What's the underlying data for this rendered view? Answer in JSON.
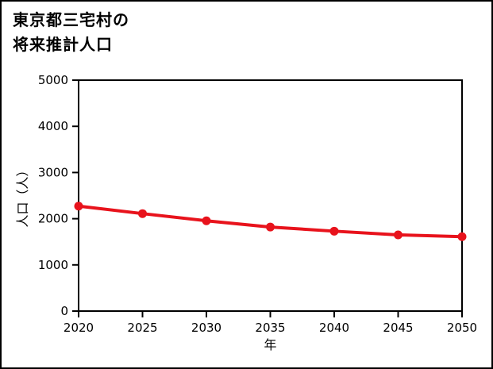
{
  "title": {
    "line1": "東京都三宅村の",
    "line2": "将来推計人口"
  },
  "colors": {
    "line": "#e8131c",
    "axis": "#000000",
    "background": "#ffffff",
    "frame_border": "#000000"
  },
  "chart_data": {
    "type": "line",
    "title": "東京都三宅村の将来推計人口",
    "x": [
      2020,
      2025,
      2030,
      2035,
      2040,
      2045,
      2050
    ],
    "series": [
      {
        "name": "将来推計人口",
        "values": [
          2273,
          2110,
          1955,
          1820,
          1730,
          1650,
          1610
        ],
        "color": "#e8131c",
        "marker": "circle"
      }
    ],
    "xlabel": "年",
    "ylabel": "人口（人）",
    "xlim": [
      2020,
      2050
    ],
    "ylim": [
      0,
      5000
    ],
    "xticks": [
      "2020",
      "2025",
      "2030",
      "2035",
      "2040",
      "2045",
      "2050"
    ],
    "yticks": [
      "0",
      "1000",
      "2000",
      "3000",
      "4000",
      "5000"
    ],
    "ytick_values": [
      0,
      1000,
      2000,
      3000,
      4000,
      5000
    ],
    "grid": false,
    "legend_position": "none"
  }
}
